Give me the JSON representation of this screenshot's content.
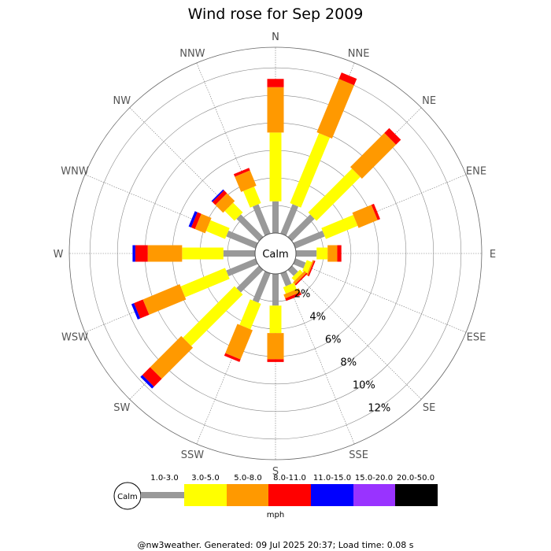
{
  "chart_data": {
    "type": "wind-rose",
    "title": "Wind rose for Sep 2009",
    "directions": [
      "N",
      "NNE",
      "NE",
      "ENE",
      "E",
      "ESE",
      "SE",
      "SSE",
      "S",
      "SSW",
      "SW",
      "WSW",
      "W",
      "WNW",
      "NW",
      "NNW"
    ],
    "ring_labels": [
      "2%",
      "4%",
      "6%",
      "8%",
      "10%",
      "12%"
    ],
    "ring_values": [
      2,
      4,
      6,
      8,
      10,
      12
    ],
    "rmax": 13.5,
    "calm_label": "Calm",
    "speed_bins": [
      {
        "label": "1.0-3.0",
        "color": "#999999"
      },
      {
        "label": "3.0-5.0",
        "color": "#ffff00"
      },
      {
        "label": "5.0-8.0",
        "color": "#ff9900"
      },
      {
        "label": "8.0-11.0",
        "color": "#ff0000"
      },
      {
        "label": "11.0-15.0",
        "color": "#0000ff"
      },
      {
        "label": "15.0-20.0",
        "color": "#9933ff"
      },
      {
        "label": "20.0-50.0",
        "color": "#000000"
      }
    ],
    "units": "mph",
    "cumulative_percent": {
      "N": [
        2.3,
        7.3,
        10.6,
        11.2,
        11.2,
        11.2,
        11.2
      ],
      "NNE": [
        2.3,
        7.8,
        12.0,
        12.5,
        12.5,
        12.5,
        12.5
      ],
      "NE": [
        2.3,
        6.8,
        10.3,
        10.8,
        10.8,
        10.8,
        10.8
      ],
      "ENE": [
        2.3,
        4.8,
        6.3,
        6.5,
        6.5,
        6.5,
        6.5
      ],
      "E": [
        1.5,
        2.3,
        3.0,
        3.3,
        3.3,
        3.3,
        3.3
      ],
      "ESE": [
        0.8,
        1.2,
        1.3,
        1.4,
        1.4,
        1.4,
        1.4
      ],
      "SE": [
        0.6,
        0.9,
        1.1,
        1.2,
        1.2,
        1.2,
        1.2
      ],
      "SSE": [
        1.0,
        1.5,
        1.8,
        2.0,
        2.0,
        2.0,
        2.0
      ],
      "S": [
        2.3,
        4.3,
        6.2,
        6.4,
        6.4,
        6.4,
        6.4
      ],
      "SSW": [
        2.3,
        4.3,
        6.6,
        6.8,
        6.8,
        6.8,
        6.8
      ],
      "SW": [
        2.3,
        7.6,
        10.8,
        11.6,
        11.8,
        11.8,
        11.8
      ],
      "WSW": [
        2.3,
        5.8,
        8.7,
        9.4,
        9.6,
        9.6,
        9.6
      ],
      "W": [
        2.3,
        5.3,
        7.8,
        8.7,
        8.9,
        8.9,
        8.9
      ],
      "WNW": [
        2.3,
        3.8,
        4.6,
        4.9,
        5.1,
        5.1,
        5.1
      ],
      "NW": [
        2.3,
        3.3,
        4.1,
        4.4,
        4.5,
        4.5,
        4.5
      ],
      "NNW": [
        2.3,
        3.6,
        4.8,
        5.0,
        5.0,
        5.0,
        5.0
      ]
    }
  },
  "footer": "@nw3weather.  Generated: 09 Jul 2025 20:37; Load time: 0.08 s"
}
